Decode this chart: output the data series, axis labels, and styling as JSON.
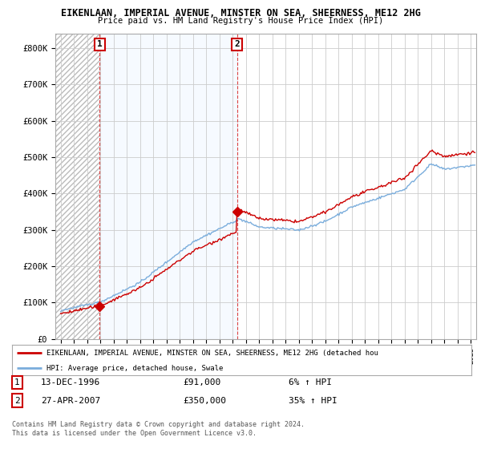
{
  "title1": "EIKENLAAN, IMPERIAL AVENUE, MINSTER ON SEA, SHEERNESS, ME12 2HG",
  "title2": "Price paid vs. HM Land Registry's House Price Index (HPI)",
  "yticks": [
    0,
    100000,
    200000,
    300000,
    400000,
    500000,
    600000,
    700000,
    800000
  ],
  "ytick_labels": [
    "£0",
    "£100K",
    "£200K",
    "£300K",
    "£400K",
    "£500K",
    "£600K",
    "£700K",
    "£800K"
  ],
  "xlim_start": 1993.6,
  "xlim_end": 2025.4,
  "ylim_min": 0,
  "ylim_max": 840000,
  "sale1_year": 1996.96,
  "sale1_price": 91000,
  "sale2_year": 2007.32,
  "sale2_price": 350000,
  "sale1_label": "1",
  "sale2_label": "2",
  "legend_line1": "EIKENLAAN, IMPERIAL AVENUE, MINSTER ON SEA, SHEERNESS, ME12 2HG (detached hou",
  "legend_line2": "HPI: Average price, detached house, Swale",
  "table_row1_num": "1",
  "table_row1_date": "13-DEC-1996",
  "table_row1_price": "£91,000",
  "table_row1_hpi": "6% ↑ HPI",
  "table_row2_num": "2",
  "table_row2_date": "27-APR-2007",
  "table_row2_price": "£350,000",
  "table_row2_hpi": "35% ↑ HPI",
  "footnote": "Contains HM Land Registry data © Crown copyright and database right 2024.\nThis data is licensed under the Open Government Licence v3.0.",
  "red_color": "#cc0000",
  "blue_color": "#7aaddc",
  "blue_fill_color": "#ddeeff",
  "hatch_color": "#bbbbbb",
  "grid_color": "#cccccc",
  "vline_color": "#dd4444"
}
